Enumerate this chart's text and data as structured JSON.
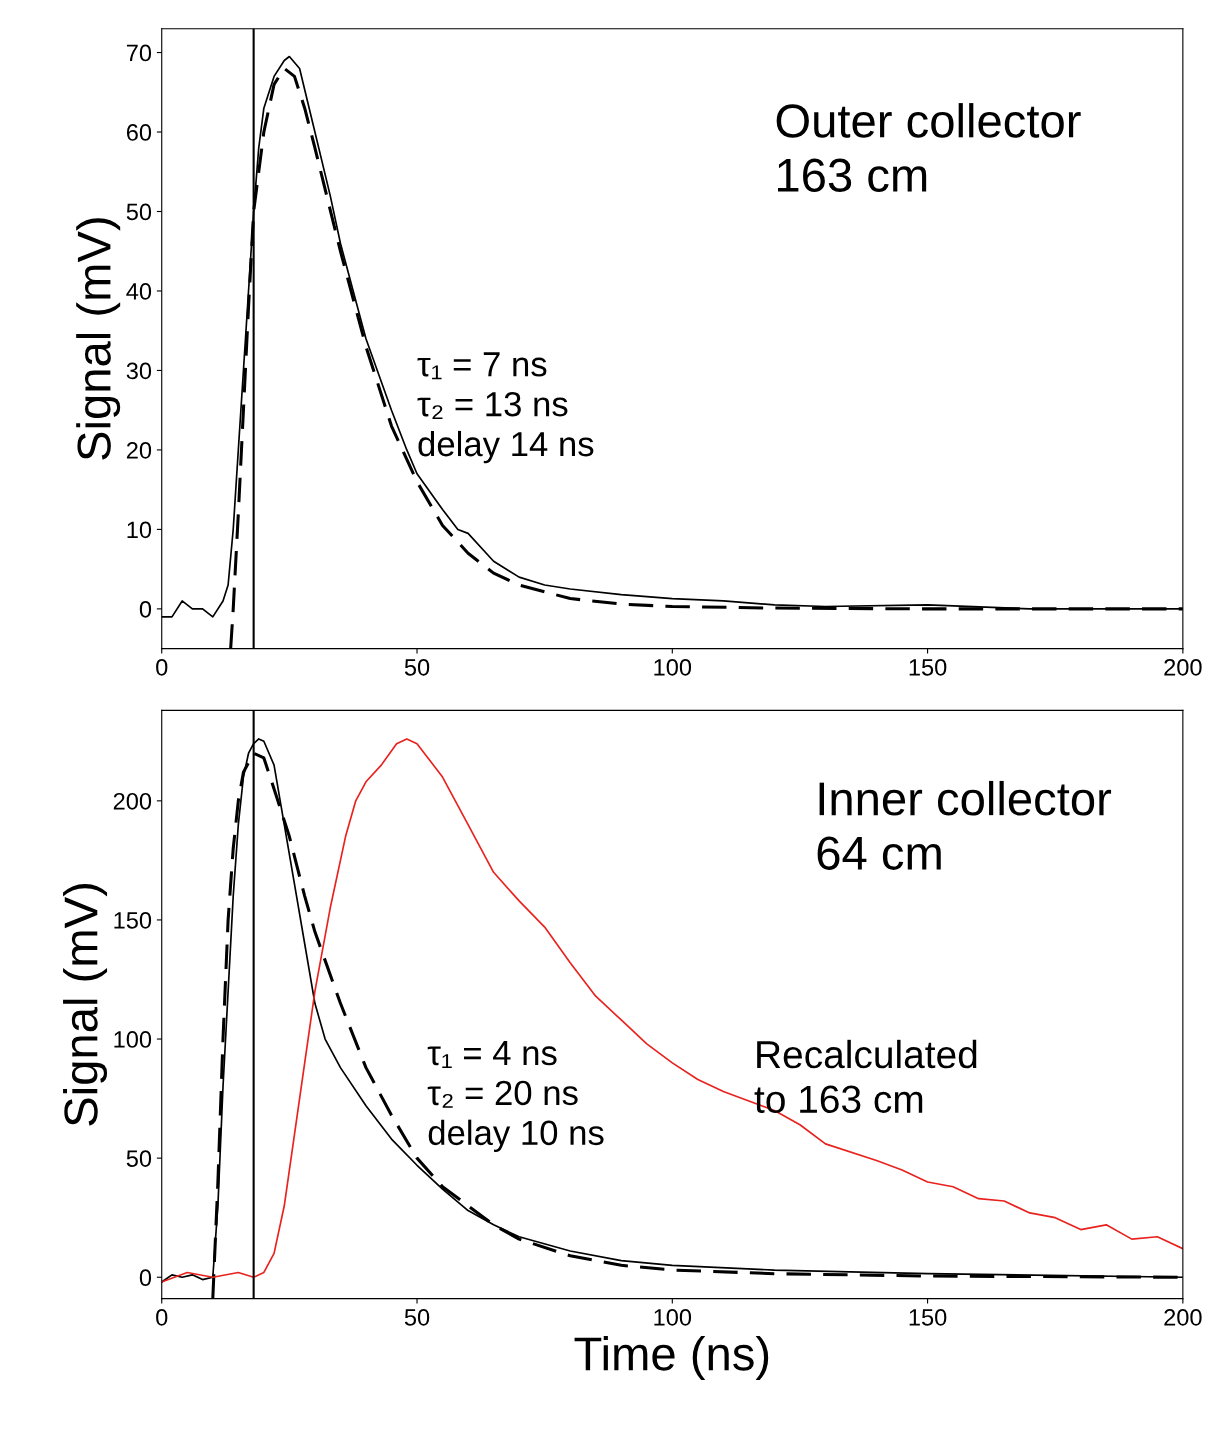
{
  "chart_data": [
    {
      "type": "line",
      "ylabel": "Signal (mV)",
      "xlim": [
        0,
        200
      ],
      "ylim": [
        -5,
        73
      ],
      "xticks": [
        0,
        50,
        100,
        150,
        200
      ],
      "yticks": [
        0,
        10,
        20,
        30,
        40,
        50,
        60,
        70
      ],
      "grid": false,
      "legend": false,
      "annotations": [
        "Outer collector\n163 cm",
        "τ₁ = 7 ns\nτ₂ = 13 ns\ndelay 14 ns"
      ],
      "ref_lines": [
        {
          "axis": "x",
          "value": 18,
          "color": "#000000"
        }
      ],
      "series": [
        {
          "color": "#000000",
          "line_style": "solid",
          "x": [
            0,
            2,
            4,
            6,
            8,
            10,
            12,
            13,
            14,
            15,
            16,
            17,
            18,
            19,
            20,
            22,
            24,
            25,
            27,
            30,
            33,
            35,
            40,
            45,
            48,
            50,
            55,
            58,
            60,
            65,
            70,
            75,
            80,
            90,
            100,
            110,
            120,
            130,
            150,
            170,
            200
          ],
          "values": [
            -1,
            -1,
            1,
            0,
            0,
            -1,
            1,
            3,
            10,
            20,
            30,
            40,
            50,
            58,
            63,
            67,
            69,
            69.5,
            68,
            60,
            52,
            46,
            34,
            25,
            20,
            17,
            12.5,
            10,
            9.5,
            6,
            4,
            3,
            2.5,
            1.8,
            1.3,
            1,
            0.5,
            0.3,
            0.5,
            0,
            0
          ]
        },
        {
          "color": "#000000",
          "line_style": "dashed",
          "x": [
            13.5,
            14,
            15,
            16,
            17,
            18,
            20,
            22,
            24,
            26,
            28,
            30,
            35,
            40,
            45,
            50,
            55,
            60,
            65,
            70,
            80,
            90,
            100,
            120,
            150,
            200
          ],
          "values": [
            -5,
            0,
            12,
            25,
            38,
            50,
            60,
            66,
            68,
            67,
            63,
            58,
            45,
            33,
            23,
            16,
            10.5,
            7,
            4.5,
            3,
            1.3,
            0.6,
            0.3,
            0.1,
            0,
            0
          ]
        }
      ]
    },
    {
      "type": "line",
      "xlabel": "Time (ns)",
      "ylabel": "Signal (mV)",
      "xlim": [
        0,
        200
      ],
      "ylim": [
        -9,
        238
      ],
      "xticks": [
        0,
        50,
        100,
        150,
        200
      ],
      "yticks": [
        0,
        50,
        100,
        150,
        200
      ],
      "grid": false,
      "legend": false,
      "annotations": [
        "Inner collector\n64 cm",
        "τ₁ = 4 ns\nτ₂ = 20 ns\ndelay 10 ns",
        "Recalculated\nto 163 cm"
      ],
      "ref_lines": [
        {
          "axis": "x",
          "value": 18,
          "color": "#000000"
        }
      ],
      "series": [
        {
          "color": "#000000",
          "line_style": "solid",
          "x": [
            0,
            2,
            4,
            6,
            8,
            10,
            11,
            12,
            13,
            14,
            15,
            16,
            17,
            18,
            19,
            20,
            22,
            24,
            26,
            28,
            30,
            32,
            35,
            40,
            45,
            50,
            55,
            60,
            65,
            70,
            80,
            90,
            100,
            120,
            150,
            200
          ],
          "values": [
            -2,
            1,
            0,
            1,
            -1,
            0,
            30,
            80,
            120,
            160,
            190,
            210,
            220,
            224,
            226,
            225,
            215,
            190,
            165,
            140,
            115,
            100,
            88,
            72,
            58,
            47,
            37,
            28,
            22,
            17,
            11,
            7,
            5,
            3,
            1.5,
            0
          ]
        },
        {
          "color": "#000000",
          "line_style": "dashed",
          "x": [
            10,
            11,
            12,
            13,
            14,
            15,
            16,
            18,
            20,
            22,
            25,
            28,
            30,
            35,
            40,
            45,
            50,
            55,
            60,
            65,
            70,
            80,
            90,
            100,
            120,
            150,
            200
          ],
          "values": [
            -9,
            40,
            100,
            150,
            180,
            200,
            212,
            220,
            218,
            205,
            185,
            160,
            145,
            115,
            88,
            68,
            50,
            38,
            30,
            22,
            16,
            9,
            5,
            3,
            1.5,
            0.5,
            0
          ]
        },
        {
          "color": "#e8231f",
          "line_style": "solid",
          "x": [
            0,
            5,
            10,
            15,
            18,
            20,
            22,
            24,
            26,
            28,
            30,
            33,
            36,
            38,
            40,
            43,
            46,
            48,
            50,
            55,
            60,
            65,
            70,
            75,
            80,
            85,
            90,
            95,
            100,
            105,
            110,
            120,
            125,
            130,
            140,
            145,
            150,
            155,
            160,
            165,
            170,
            175,
            180,
            185,
            190,
            195,
            200
          ],
          "values": [
            -2,
            2,
            0,
            2,
            0,
            2,
            10,
            30,
            60,
            90,
            120,
            155,
            185,
            200,
            208,
            215,
            224,
            226,
            224,
            210,
            190,
            170,
            158,
            147,
            132,
            118,
            108,
            98,
            90,
            83,
            78,
            70,
            64,
            56,
            49,
            45,
            40,
            38,
            33,
            32,
            27,
            25,
            20,
            22,
            16,
            17,
            12
          ]
        }
      ]
    }
  ]
}
